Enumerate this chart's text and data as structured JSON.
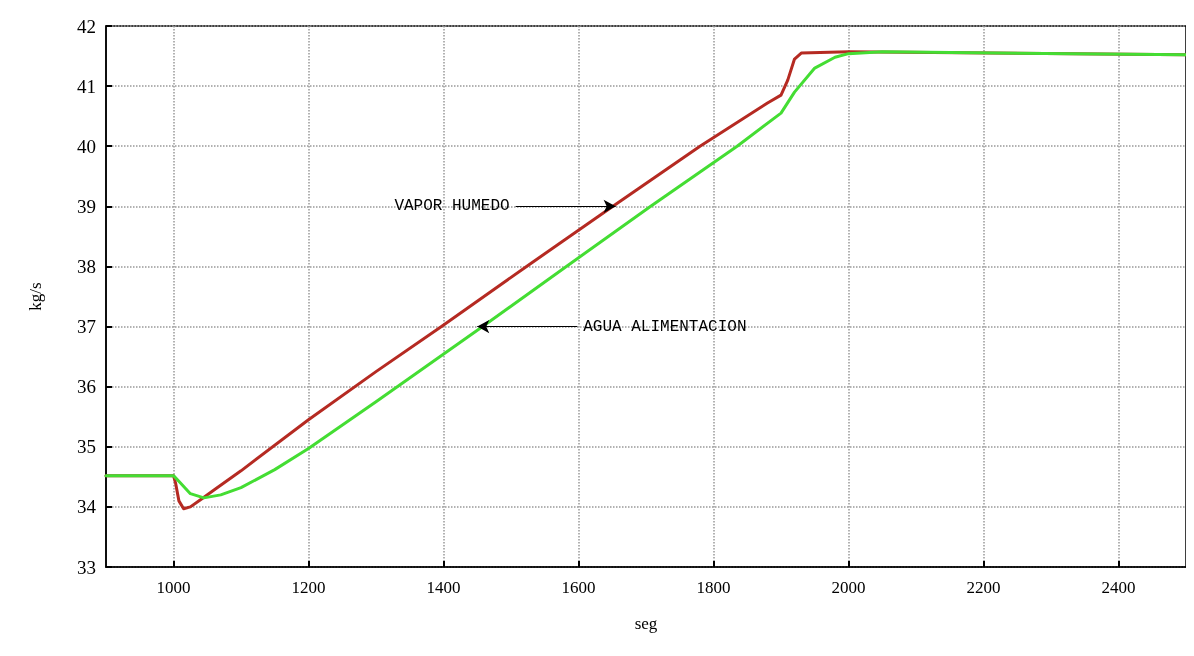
{
  "chart_data": {
    "type": "line",
    "xlabel": "seg",
    "ylabel": "kg/s",
    "xlim": [
      900,
      2500
    ],
    "xticks": [
      1000,
      1200,
      1400,
      1600,
      1800,
      2000,
      2200,
      2400
    ],
    "ylim": [
      33,
      42
    ],
    "yticks": [
      33,
      34,
      35,
      36,
      37,
      38,
      39,
      40,
      41,
      42
    ],
    "grid": true,
    "marker": "none",
    "line_style": "solid",
    "series": [
      {
        "color": "#b52a22",
        "x": [
          900,
          1000,
          1003,
          1008,
          1015,
          1025,
          1040,
          1060,
          1100,
          1200,
          1300,
          1397,
          1523,
          1651,
          1780,
          1880,
          1900,
          1910,
          1920,
          1930,
          2000,
          2500
        ],
        "values": [
          34.52,
          34.52,
          34.4,
          34.1,
          33.97,
          34.0,
          34.12,
          34.28,
          34.6,
          35.45,
          36.25,
          37,
          38,
          39,
          40,
          40.72,
          40.85,
          41.1,
          41.45,
          41.55,
          41.57,
          41.52
        ]
      },
      {
        "color": "#44dd33",
        "x": [
          900,
          1000,
          1010,
          1025,
          1045,
          1070,
          1100,
          1150,
          1200,
          1300,
          1458,
          1582,
          1707,
          1835,
          1900,
          1920,
          1950,
          1980,
          2000,
          2050,
          2500
        ],
        "values": [
          34.52,
          34.52,
          34.4,
          34.22,
          34.15,
          34.2,
          34.32,
          34.62,
          34.97,
          35.75,
          37,
          38,
          39,
          40,
          40.55,
          40.9,
          41.3,
          41.48,
          41.54,
          41.57,
          41.52
        ]
      }
    ],
    "annotations": [
      {
        "text": "VAPOR HUMEDO",
        "x": 1655,
        "y": 39
      },
      {
        "text": "AGUA ALIMENTACION",
        "x": 1450,
        "y": 37
      }
    ]
  }
}
